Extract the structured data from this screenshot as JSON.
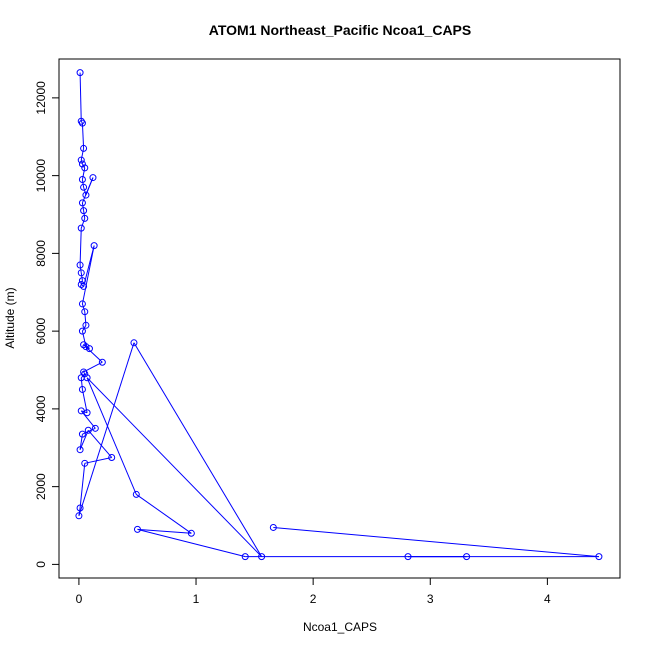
{
  "chart_data": {
    "type": "scatter",
    "title": "ATOM1 Northeast_Pacific Ncoa1_CAPS",
    "xlabel": "Ncoa1_CAPS",
    "ylabel": "Altitude (m)",
    "xlim": [
      -0.17,
      4.62
    ],
    "ylim": [
      -350,
      13000
    ],
    "xticks": [
      0,
      1,
      2,
      3,
      4
    ],
    "yticks": [
      0,
      2000,
      4000,
      6000,
      8000,
      10000,
      12000
    ],
    "grid": false,
    "legend": "none",
    "line_color": "#0000ff",
    "marker": "open-circle",
    "series": [
      {
        "x": [
          0.01,
          0.02,
          0.03,
          0.04,
          0.02,
          0.03,
          0.05,
          0.03,
          0.04,
          0.06,
          0.12,
          0.03,
          0.04,
          0.05,
          0.02,
          0.01,
          0.02,
          0.03,
          0.02,
          0.04,
          0.13,
          0.03,
          0.05,
          0.06,
          0.03,
          0.06,
          0.09,
          0.04,
          0.2,
          0.04,
          0.05,
          0.02,
          0.03,
          0.07,
          0.02,
          0.14,
          0.03,
          0.01,
          0.08,
          0.28,
          0.05,
          0.01,
          0.0,
          0.47,
          1.56,
          0.07,
          0.49,
          0.96,
          0.5,
          1.42,
          3.31,
          2.81,
          4.44,
          1.66
        ],
        "y": [
          12650,
          11400,
          11350,
          10700,
          10400,
          10300,
          10200,
          9900,
          9700,
          9500,
          9950,
          9300,
          9100,
          8900,
          8650,
          7700,
          7500,
          7300,
          7200,
          7150,
          8200,
          6700,
          6500,
          6150,
          6000,
          5600,
          5550,
          5650,
          5200,
          4950,
          4900,
          4800,
          4500,
          3900,
          3950,
          3500,
          3350,
          2950,
          3450,
          2750,
          2600,
          1450,
          1250,
          5700,
          200,
          4800,
          1800,
          800,
          900,
          200,
          200,
          200,
          200,
          950
        ]
      }
    ]
  }
}
